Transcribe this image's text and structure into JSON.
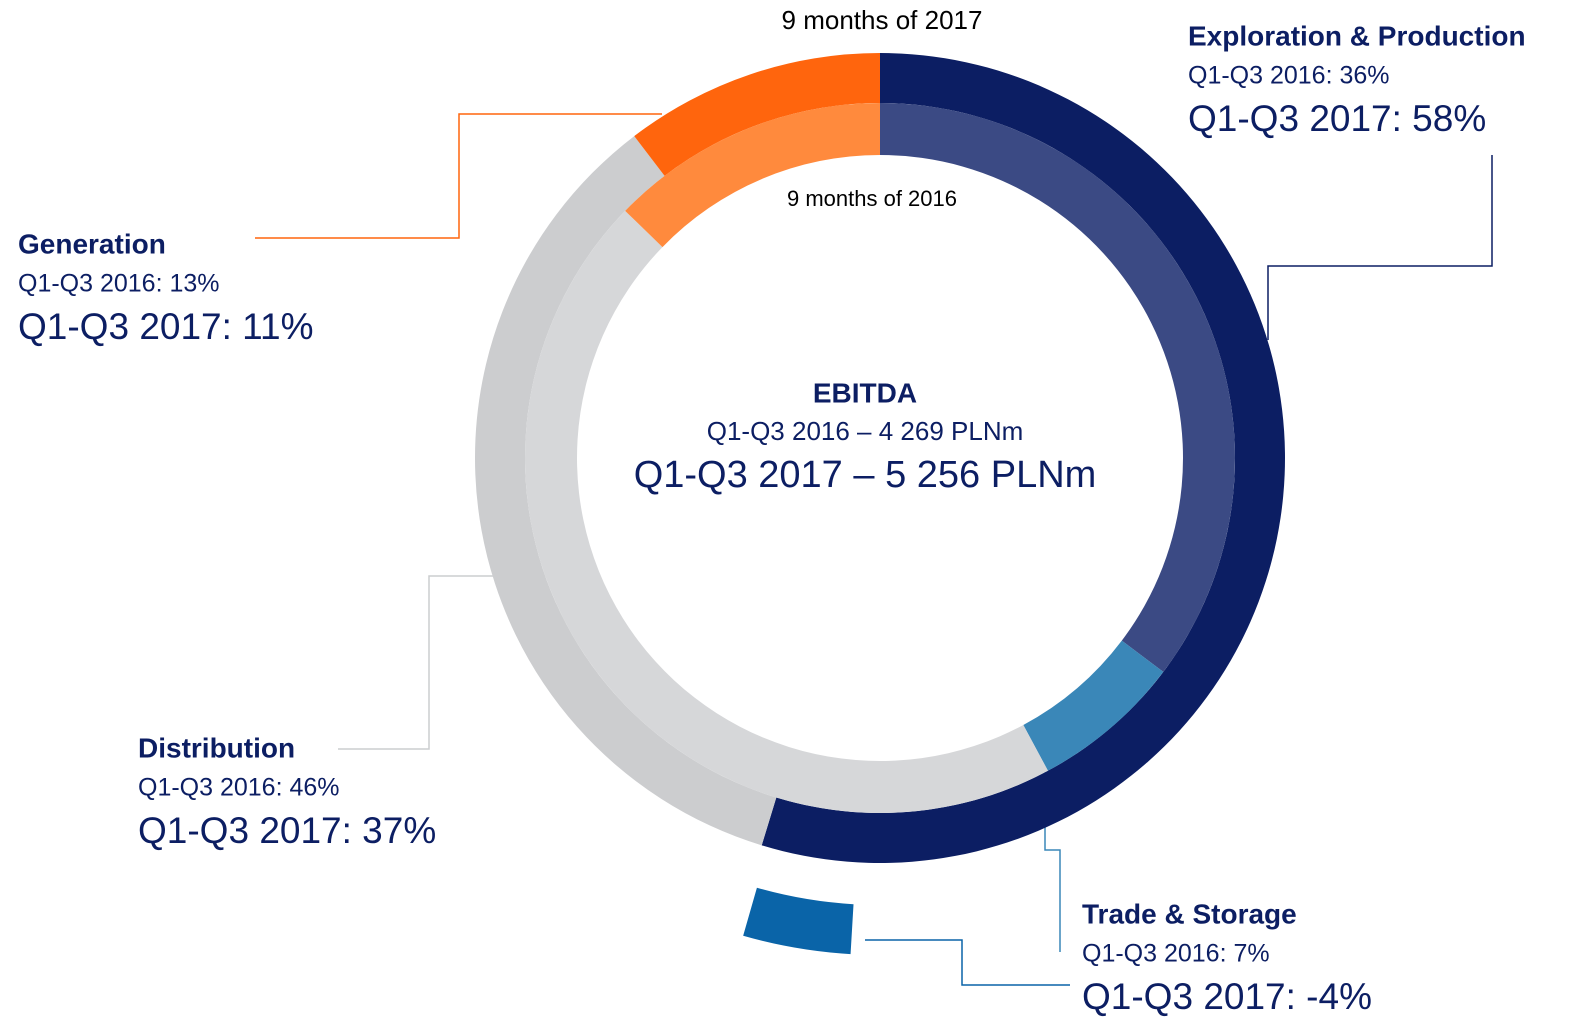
{
  "chart_data": {
    "type": "nested_donut",
    "title": "EBITDA",
    "annotations": [
      "Q1-Q3 2016 – 4 269 PLNm",
      "Q1-Q3 2017 – 5 256 PLNm"
    ],
    "categories": [
      "Exploration & Production",
      "Trade & Storage",
      "Distribution",
      "Generation"
    ],
    "series": [
      {
        "name": "9 months of 2017",
        "values": [
          58,
          -4,
          37,
          11
        ],
        "value_labels": [
          "Q1-Q3 2017: 58%",
          "Q1-Q3 2017: -4%",
          "Q1-Q3 2017: 37%",
          "Q1-Q3 2017: 11%"
        ],
        "colors": [
          "#0c1e63",
          "#0a64a8",
          "#cccdcf",
          "#ff650d"
        ]
      },
      {
        "name": "9 months of 2016",
        "values": [
          36,
          7,
          46,
          13
        ],
        "value_labels": [
          "Q1-Q3 2016: 36%",
          "Q1-Q3 2016: 7%",
          "Q1-Q3 2016: 46%",
          "Q1-Q3 2016: 13%"
        ],
        "colors": [
          "#3b4a84",
          "#3a87b8",
          "#d6d7d9",
          "#ff8a3d"
        ]
      }
    ]
  }
}
